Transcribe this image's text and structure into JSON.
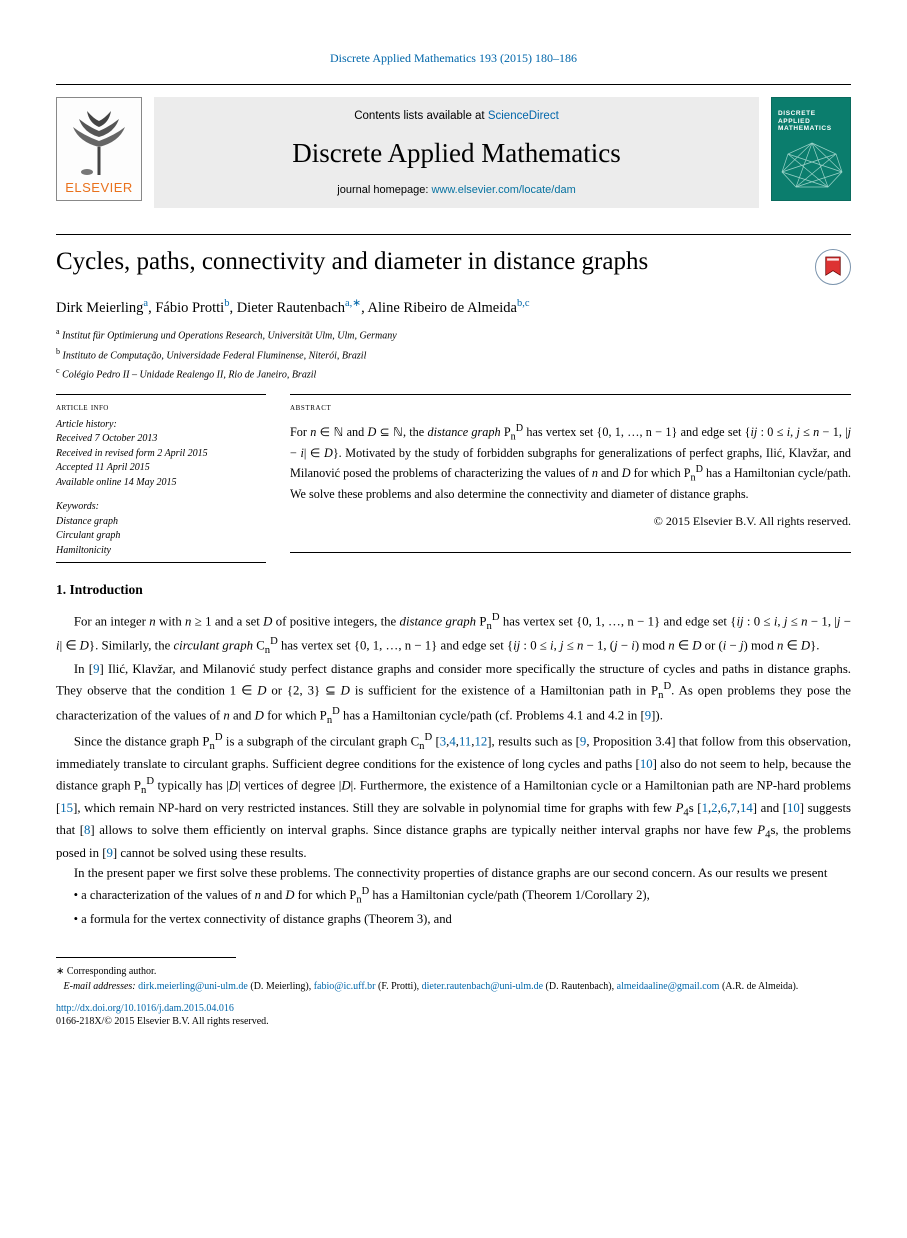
{
  "top_ref": {
    "journal": "Discrete Applied Mathematics",
    "citation": "193 (2015) 180–186",
    "href": "#"
  },
  "masthead": {
    "avail_pre": "Contents lists available at ",
    "avail_link": "ScienceDirect",
    "journal": "Discrete Applied Mathematics",
    "homepage_pre": "journal homepage: ",
    "homepage_link": "www.elsevier.com/locate/dam",
    "cover_title_l1": "DISCRETE",
    "cover_title_l2": "APPLIED",
    "cover_title_l3": "MATHEMATICS",
    "elsevier_text": "ELSEVIER"
  },
  "title": "Cycles, paths, connectivity and diameter in distance graphs",
  "authors_html": "Dirk Meierling<span class='sup' data-name='affil-ref'>a</span>, Fábio Protti<span class='sup' data-name='affil-ref'>b</span>, Dieter Rautenbach<span class='sup' data-name='affil-ref'>a,</span><span class='sup' data-name='corresp-ref'>∗</span>, Aline Ribeiro de Almeida<span class='sup' data-name='affil-ref'>b,c</span>",
  "affiliations": [
    {
      "key": "a",
      "text": "Institut für Optimierung und Operations Research, Universität Ulm, Ulm, Germany"
    },
    {
      "key": "b",
      "text": "Instituto de Computação, Universidade Federal Fluminense, Niterói, Brazil"
    },
    {
      "key": "c",
      "text": "Colégio Pedro II – Unidade Realengo II, Rio de Janeiro, Brazil"
    }
  ],
  "history": {
    "hdr": "article info",
    "lines": [
      "Article history:",
      "Received 7 October 2013",
      "Received in revised form 2 April 2015",
      "Accepted 11 April 2015",
      "Available online 14 May 2015"
    ],
    "kw_hdr": "Keywords:",
    "keywords": [
      "Distance graph",
      "Circulant graph",
      "Hamiltonicity"
    ]
  },
  "abstract": {
    "hdr": "abstract",
    "body_html": "For <i>n</i> ∈ ℕ and <i>D</i> ⊆ ℕ, the <i>distance graph</i> P<sub>n</sub><sup>D</sup> has vertex set {0, 1, …, n − 1} and edge set {<i>ij</i> : 0 ≤ <i>i</i>, <i>j</i> ≤ <i>n</i> − 1, |<i>j</i> − <i>i</i>| ∈ <i>D</i>}. Motivated by the study of forbidden subgraphs for generalizations of perfect graphs, Ilić, Klavžar, and Milanović posed the problems of characterizing the values of <i>n</i> and <i>D</i> for which P<sub>n</sub><sup>D</sup> has a Hamiltonian cycle/path. We solve these problems and also determine the connectivity and diameter of distance graphs.",
    "copyright": "© 2015 Elsevier B.V. All rights reserved."
  },
  "section": {
    "num": "1.",
    "name": "Introduction"
  },
  "body_paras": [
    "For an integer <i>n</i> with <i>n</i> ≥ 1 and a set <i>D</i> of positive integers, the <i>distance graph</i> P<sub>n</sub><sup>D</sup> has vertex set {0, 1, …, n − 1} and edge set {<i>ij</i> : 0 ≤ <i>i</i>, <i>j</i> ≤ <i>n</i> − 1, |<i>j</i> − <i>i</i>| ∈ <i>D</i>}. Similarly, the <i>circulant graph</i> C<sub>n</sub><sup>D</sup> has vertex set {0, 1, …, n − 1} and edge set {<i>ij</i> : 0 ≤ <i>i</i>, <i>j</i> ≤ <i>n</i> − 1, (<i>j</i> − <i>i</i>) mod <i>n</i> ∈ <i>D</i> or (<i>i</i> − <i>j</i>) mod <i>n</i> ∈ <i>D</i>}.",
    "In [<span class='ref'>9</span>] Ilić, Klavžar, and Milanović study perfect distance graphs and consider more specifically the structure of cycles and paths in distance graphs. They observe that the condition 1 ∈ <i>D</i> or {2, 3} ⊆ <i>D</i> is sufficient for the existence of a Hamiltonian path in P<sub>n</sub><sup>D</sup>. As open problems they pose the characterization of the values of <i>n</i> and <i>D</i> for which P<sub>n</sub><sup>D</sup> has a Hamiltonian cycle/path (cf. Problems 4.1 and 4.2 in [<span class='ref'>9</span>]).",
    "Since the distance graph P<sub>n</sub><sup>D</sup> is a subgraph of the circulant graph C<sub>n</sub><sup>D</sup> [<span class='ref'>3</span>,<span class='ref'>4</span>,<span class='ref'>11</span>,<span class='ref'>12</span>], results such as [<span class='ref'>9</span>, Proposition 3.4] that follow from this observation, immediately translate to circulant graphs. Sufficient degree conditions for the existence of long cycles and paths [<span class='ref'>10</span>] also do not seem to help, because the distance graph P<sub>n</sub><sup>D</sup> typically has |<i>D</i>| vertices of degree |<i>D</i>|. Furthermore, the existence of a Hamiltonian cycle or a Hamiltonian path are NP-hard problems [<span class='ref'>15</span>], which remain NP-hard on very restricted instances. Still they are solvable in polynomial time for graphs with few <i>P</i><sub>4</sub>s [<span class='ref'>1</span>,<span class='ref'>2</span>,<span class='ref'>6</span>,<span class='ref'>7</span>,<span class='ref'>14</span>] and [<span class='ref'>10</span>] suggests that [<span class='ref'>8</span>] allows to solve them efficiently on interval graphs. Since distance graphs are typically neither interval graphs nor have few <i>P</i><sub>4</sub>s, the problems posed in [<span class='ref'>9</span>] cannot be solved using these results.",
    "In the present paper we first solve these problems. The connectivity properties of distance graphs are our second concern. As our results we present"
  ],
  "bullets": [
    "a characterization of the values of <i>n</i> and <i>D</i> for which P<sub>n</sub><sup>D</sup> has a Hamiltonian cycle/path (Theorem 1/Corollary 2),",
    "a formula for the vertex connectivity of distance graphs (Theorem 3), and"
  ],
  "footnotes": {
    "corresp": "Corresponding author.",
    "emails_pre": "E-mail addresses: ",
    "emails": [
      {
        "addr": "dirk.meierling@uni-ulm.de",
        "who": "D. Meierling"
      },
      {
        "addr": "fabio@ic.uff.br",
        "who": "F. Protti"
      },
      {
        "addr": "dieter.rautenbach@uni-ulm.de",
        "who": "D. Rautenbach"
      },
      {
        "addr": "almeidaaline@gmail.com",
        "who": "A.R. de Almeida"
      }
    ],
    "doi_href": "http://dx.doi.org/10.1016/j.dam.2015.04.016",
    "doi_text": "http://dx.doi.org/10.1016/j.dam.2015.04.016",
    "copyright": "0166-218X/© 2015 Elsevier B.V. All rights reserved."
  },
  "colors": {
    "link": "#0066aa",
    "elsevier_orange": "#e9711c",
    "cover_bg": "#0b7d6d",
    "masthead_bg": "#ececec"
  }
}
